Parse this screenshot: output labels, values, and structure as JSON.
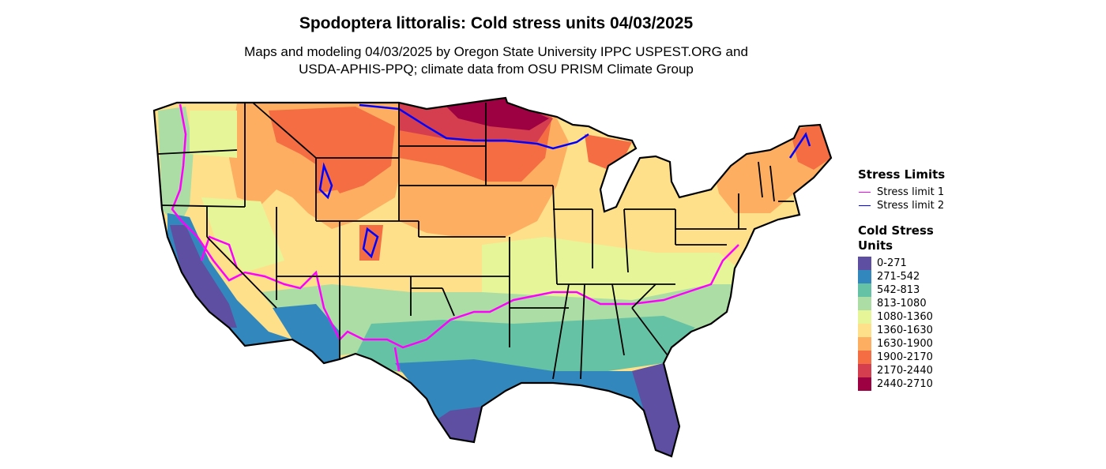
{
  "title": "Spodoptera littoralis: Cold stress units 04/03/2025",
  "subtitle_line1": "Maps and modeling 04/03/2025 by Oregon State University IPPC USPEST.ORG and",
  "subtitle_line2": "USDA-APHIS-PPQ; climate data from OSU PRISM Climate Group",
  "stress_legend": {
    "title": "Stress Limits",
    "items": [
      {
        "label": "Stress limit 1",
        "color": "#ff00ff"
      },
      {
        "label": "Stress limit 2",
        "color": "#0000ff"
      }
    ]
  },
  "units_legend": {
    "title_line1": "Cold Stress",
    "title_line2": "Units",
    "items": [
      {
        "label": "0-271",
        "color": "#5e4fa2"
      },
      {
        "label": "271-542",
        "color": "#3288bd"
      },
      {
        "label": "542-813",
        "color": "#66c2a5"
      },
      {
        "label": "813-1080",
        "color": "#abdda4"
      },
      {
        "label": "1080-1360",
        "color": "#e6f598"
      },
      {
        "label": "1360-1630",
        "color": "#fee08b"
      },
      {
        "label": "1630-1900",
        "color": "#fdae61"
      },
      {
        "label": "1900-2170",
        "color": "#f46d43"
      },
      {
        "label": "2170-2440",
        "color": "#d53e4f"
      },
      {
        "label": "2440-2710",
        "color": "#9e0142"
      }
    ]
  }
}
